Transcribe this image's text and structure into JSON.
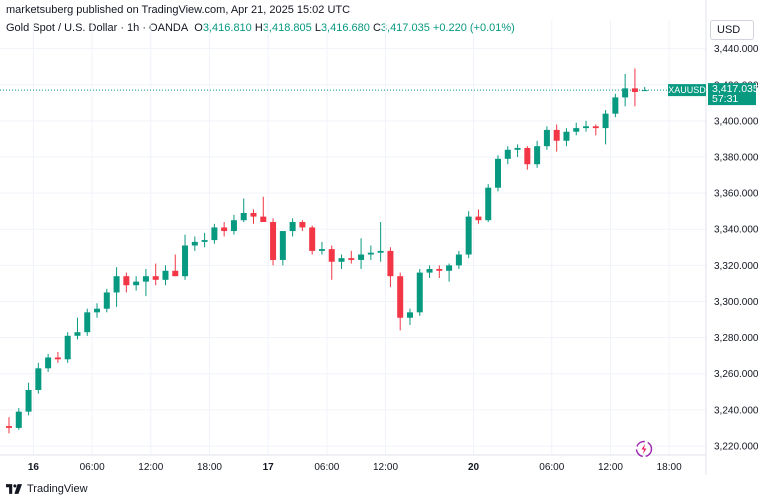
{
  "caption": "marketsuberg published on TradingView.com, Apr 21, 2025 15:02 UTC",
  "legend": {
    "symbol_line": "Gold Spot / U.S. Dollar · 1h · OANDA",
    "open_label": "O",
    "open": "3,416.810",
    "high_label": "H",
    "high": "3,418.805",
    "low_label": "L",
    "low": "3,416.680",
    "close_label": "C",
    "close": "3,417.035",
    "change": "+0.220 (+0.01%)"
  },
  "currency": "USD",
  "price_badge": {
    "symbol": "XAUUSD",
    "price": "3,417.035",
    "countdown": "57:31"
  },
  "footer": {
    "brand": "TradingView"
  },
  "colors": {
    "up": "#089981",
    "down": "#f23645",
    "grid": "#f0f3fa",
    "axis_text": "#131722",
    "price_line": "#089981"
  },
  "chart_data": {
    "type": "candlestick",
    "title": "Gold Spot / U.S. Dollar · 1h · OANDA",
    "ylim": [
      3215,
      3447
    ],
    "y_ticks": [
      "3,220.000",
      "3,240.000",
      "3,260.000",
      "3,280.000",
      "3,300.000",
      "3,320.000",
      "3,340.000",
      "3,360.000",
      "3,380.000",
      "3,400.000",
      "3,420.000",
      "3,440.000"
    ],
    "y_tick_values": [
      3220,
      3240,
      3260,
      3280,
      3300,
      3320,
      3340,
      3360,
      3380,
      3400,
      3420,
      3440
    ],
    "x_ticks": [
      {
        "label": "16",
        "index": 2.5,
        "bold": true
      },
      {
        "label": "06:00",
        "index": 8.5,
        "bold": false
      },
      {
        "label": "12:00",
        "index": 14.5,
        "bold": false
      },
      {
        "label": "18:00",
        "index": 20.5,
        "bold": false
      },
      {
        "label": "17",
        "index": 26.5,
        "bold": true
      },
      {
        "label": "06:00",
        "index": 32.5,
        "bold": false
      },
      {
        "label": "12:00",
        "index": 38.5,
        "bold": false
      },
      {
        "label": "20",
        "index": 47.5,
        "bold": true
      },
      {
        "label": "06:00",
        "index": 55.5,
        "bold": false
      },
      {
        "label": "12:00",
        "index": 61.5,
        "bold": false
      },
      {
        "label": "18:00",
        "index": 67.5,
        "bold": false
      }
    ],
    "last_price": 3417.035,
    "grid": true,
    "candles": [
      {
        "o": 3231,
        "h": 3236,
        "l": 3227,
        "c": 3230
      },
      {
        "o": 3230,
        "h": 3241,
        "l": 3229,
        "c": 3239
      },
      {
        "o": 3239,
        "h": 3255,
        "l": 3237,
        "c": 3251
      },
      {
        "o": 3251,
        "h": 3266,
        "l": 3249,
        "c": 3263
      },
      {
        "o": 3263,
        "h": 3271,
        "l": 3261,
        "c": 3269
      },
      {
        "o": 3269,
        "h": 3272,
        "l": 3266,
        "c": 3268
      },
      {
        "o": 3268,
        "h": 3283,
        "l": 3266,
        "c": 3281
      },
      {
        "o": 3281,
        "h": 3291,
        "l": 3279,
        "c": 3283
      },
      {
        "o": 3283,
        "h": 3296,
        "l": 3281,
        "c": 3294
      },
      {
        "o": 3294,
        "h": 3299,
        "l": 3291,
        "c": 3296
      },
      {
        "o": 3296,
        "h": 3307,
        "l": 3294,
        "c": 3305
      },
      {
        "o": 3305,
        "h": 3319,
        "l": 3297,
        "c": 3314
      },
      {
        "o": 3314,
        "h": 3316,
        "l": 3305,
        "c": 3309
      },
      {
        "o": 3309,
        "h": 3314,
        "l": 3306,
        "c": 3311
      },
      {
        "o": 3311,
        "h": 3318,
        "l": 3303,
        "c": 3314
      },
      {
        "o": 3314,
        "h": 3321,
        "l": 3309,
        "c": 3312
      },
      {
        "o": 3312,
        "h": 3320,
        "l": 3309,
        "c": 3317
      },
      {
        "o": 3317,
        "h": 3326,
        "l": 3314,
        "c": 3314
      },
      {
        "o": 3314,
        "h": 3337,
        "l": 3312,
        "c": 3331
      },
      {
        "o": 3331,
        "h": 3336,
        "l": 3328,
        "c": 3333
      },
      {
        "o": 3333,
        "h": 3338,
        "l": 3330,
        "c": 3334
      },
      {
        "o": 3334,
        "h": 3343,
        "l": 3332,
        "c": 3341
      },
      {
        "o": 3341,
        "h": 3344,
        "l": 3336,
        "c": 3339
      },
      {
        "o": 3339,
        "h": 3348,
        "l": 3337,
        "c": 3345
      },
      {
        "o": 3345,
        "h": 3357,
        "l": 3344,
        "c": 3349
      },
      {
        "o": 3349,
        "h": 3351,
        "l": 3343,
        "c": 3347
      },
      {
        "o": 3347,
        "h": 3358,
        "l": 3345,
        "c": 3344
      },
      {
        "o": 3344,
        "h": 3346,
        "l": 3320,
        "c": 3323
      },
      {
        "o": 3323,
        "h": 3338,
        "l": 3320,
        "c": 3339
      },
      {
        "o": 3339,
        "h": 3346,
        "l": 3336,
        "c": 3344
      },
      {
        "o": 3344,
        "h": 3345,
        "l": 3339,
        "c": 3341
      },
      {
        "o": 3341,
        "h": 3342,
        "l": 3326,
        "c": 3328
      },
      {
        "o": 3328,
        "h": 3333,
        "l": 3326,
        "c": 3329
      },
      {
        "o": 3329,
        "h": 3331,
        "l": 3312,
        "c": 3322
      },
      {
        "o": 3322,
        "h": 3326,
        "l": 3318,
        "c": 3324
      },
      {
        "o": 3324,
        "h": 3328,
        "l": 3321,
        "c": 3323
      },
      {
        "o": 3323,
        "h": 3335,
        "l": 3318,
        "c": 3326
      },
      {
        "o": 3326,
        "h": 3331,
        "l": 3323,
        "c": 3327
      },
      {
        "o": 3327,
        "h": 3344,
        "l": 3322,
        "c": 3328
      },
      {
        "o": 3328,
        "h": 3330,
        "l": 3308,
        "c": 3314
      },
      {
        "o": 3314,
        "h": 3316,
        "l": 3284,
        "c": 3291
      },
      {
        "o": 3291,
        "h": 3296,
        "l": 3287,
        "c": 3294
      },
      {
        "o": 3294,
        "h": 3318,
        "l": 3292,
        "c": 3316
      },
      {
        "o": 3316,
        "h": 3320,
        "l": 3313,
        "c": 3318
      },
      {
        "o": 3318,
        "h": 3320,
        "l": 3313,
        "c": 3317
      },
      {
        "o": 3317,
        "h": 3321,
        "l": 3311,
        "c": 3320
      },
      {
        "o": 3320,
        "h": 3328,
        "l": 3318,
        "c": 3326
      },
      {
        "o": 3326,
        "h": 3350,
        "l": 3324,
        "c": 3347
      },
      {
        "o": 3347,
        "h": 3351,
        "l": 3343,
        "c": 3345
      },
      {
        "o": 3345,
        "h": 3365,
        "l": 3344,
        "c": 3363
      },
      {
        "o": 3363,
        "h": 3381,
        "l": 3361,
        "c": 3379
      },
      {
        "o": 3379,
        "h": 3386,
        "l": 3376,
        "c": 3384
      },
      {
        "o": 3384,
        "h": 3387,
        "l": 3380,
        "c": 3385
      },
      {
        "o": 3385,
        "h": 3386,
        "l": 3373,
        "c": 3376
      },
      {
        "o": 3376,
        "h": 3389,
        "l": 3374,
        "c": 3386
      },
      {
        "o": 3386,
        "h": 3397,
        "l": 3384,
        "c": 3395
      },
      {
        "o": 3395,
        "h": 3398,
        "l": 3383,
        "c": 3389
      },
      {
        "o": 3389,
        "h": 3396,
        "l": 3386,
        "c": 3394
      },
      {
        "o": 3394,
        "h": 3399,
        "l": 3392,
        "c": 3396
      },
      {
        "o": 3396,
        "h": 3400,
        "l": 3394,
        "c": 3397
      },
      {
        "o": 3397,
        "h": 3398,
        "l": 3392,
        "c": 3396
      },
      {
        "o": 3396,
        "h": 3406,
        "l": 3387,
        "c": 3404
      },
      {
        "o": 3404,
        "h": 3415,
        "l": 3402,
        "c": 3413
      },
      {
        "o": 3413,
        "h": 3426,
        "l": 3408,
        "c": 3418
      },
      {
        "o": 3418,
        "h": 3429,
        "l": 3408,
        "c": 3416
      },
      {
        "o": 3416.81,
        "h": 3418.805,
        "l": 3416.68,
        "c": 3417.035
      }
    ]
  }
}
